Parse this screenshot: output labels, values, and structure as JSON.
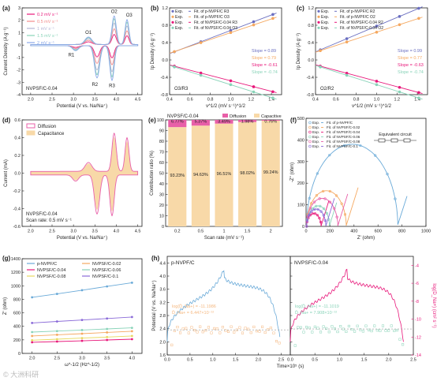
{
  "chart_data": [
    {
      "panel": "(a)",
      "type": "line",
      "ylabel": "Current Density (A g⁻¹)",
      "xlabel": "Potential (V vs. Na/Na⁺)",
      "xlim": [
        1.8,
        4.6
      ],
      "ylim": [
        -4,
        3
      ],
      "xticks": [
        2.0,
        2.5,
        3.0,
        3.5,
        4.0,
        4.5
      ],
      "yticks": [
        -4,
        -3,
        -2,
        -1,
        0,
        1,
        2,
        3
      ],
      "annotation": "NVPSF/C-0.04",
      "peak_labels": [
        "O1",
        "O2",
        "O3",
        "R1",
        "R2",
        "R3"
      ],
      "series": [
        {
          "name": "0.2 mV s⁻¹",
          "color": "#e8177a",
          "scale": 0.35
        },
        {
          "name": "0.5 mV s⁻¹",
          "color": "#f28b8b",
          "scale": 0.55
        },
        {
          "name": "1 mV s⁻¹",
          "color": "#b5b5d5",
          "scale": 0.75
        },
        {
          "name": "1.5 mV s⁻¹",
          "color": "#88d3b8",
          "scale": 0.9
        },
        {
          "name": "2 mV s⁻¹",
          "color": "#8aa8e8",
          "scale": 1.0
        }
      ],
      "legend": "top-left"
    },
    {
      "panel": "(b)",
      "type": "scatter",
      "ylabel": "Ip Density (A g⁻¹)",
      "xlabel": "v^1/2 (mV s⁻¹)^1/2",
      "xlim": [
        0.4,
        1.5
      ],
      "ylim": [
        -0.8,
        1.2
      ],
      "xticks": [
        0.4,
        0.6,
        0.8,
        1.0,
        1.2,
        1.4
      ],
      "yticks": [
        -0.8,
        -0.4,
        0.0,
        0.4,
        0.8,
        1.2
      ],
      "x": [
        0.447,
        0.707,
        1.0,
        1.225,
        1.414
      ],
      "annotation": "O3/R3",
      "legend_entries": [
        "Exp.",
        "Fit. of p-NVPF/C R3",
        "Exp.",
        "Fit. of p-NVPF/C O3",
        "Exp.",
        "Fit. of NVPSF/C-0.04 R3",
        "Exp.",
        "Fit. of NVPSF/C-0.04 O3"
      ],
      "slopes": [
        {
          "text": "Slope = 0.89",
          "color": "#6a6ec0"
        },
        {
          "text": "Slope = 0.79",
          "color": "#f5a860"
        },
        {
          "text": "Slope = -0.61",
          "color": "#e8177a"
        },
        {
          "text": "Slope = -0.74",
          "color": "#88d3b8"
        }
      ],
      "series": [
        {
          "slope": 0.89,
          "intercept": -0.21,
          "color": "#6a6ec0"
        },
        {
          "slope": 0.79,
          "intercept": -0.16,
          "color": "#f5a860"
        },
        {
          "slope": -0.61,
          "intercept": 0.13,
          "color": "#e8177a"
        },
        {
          "slope": -0.74,
          "intercept": 0.17,
          "color": "#88d3b8"
        }
      ]
    },
    {
      "panel": "(c)",
      "type": "scatter",
      "ylabel": "Ip Density (A g⁻¹)",
      "xlabel": "v^1/2 (mV s⁻¹)^1/2",
      "xlim": [
        0.4,
        1.5
      ],
      "ylim": [
        -0.8,
        1.2
      ],
      "xticks": [
        0.4,
        0.6,
        0.8,
        1.0,
        1.2,
        1.4
      ],
      "yticks": [
        -0.8,
        -0.4,
        0.0,
        0.4,
        0.8,
        1.2
      ],
      "x": [
        0.447,
        0.707,
        1.0,
        1.225,
        1.414
      ],
      "annotation": "O2/R2",
      "legend_entries": [
        "Exp.",
        "Fit. of p-NVPF/C R2",
        "Exp.",
        "Fit. of p-NVPF/C O2",
        "Exp.",
        "Fit. of NVPSF/C-0.04 R2",
        "Exp.",
        "Fit. of NVPSF/C-0.04 O2"
      ],
      "slopes": [
        {
          "text": "Slope = 0.99",
          "color": "#6a6ec0"
        },
        {
          "text": "Slope = 0.77",
          "color": "#f5a860"
        },
        {
          "text": "Slope = -0.63",
          "color": "#e8177a"
        },
        {
          "text": "Slope = -0.74",
          "color": "#88d3b8"
        }
      ],
      "series": [
        {
          "slope": 0.99,
          "intercept": -0.21,
          "color": "#6a6ec0"
        },
        {
          "slope": 0.77,
          "intercept": -0.13,
          "color": "#f5a860"
        },
        {
          "slope": -0.63,
          "intercept": 0.14,
          "color": "#e8177a"
        },
        {
          "slope": -0.74,
          "intercept": 0.17,
          "color": "#88d3b8"
        }
      ]
    },
    {
      "panel": "(d)",
      "type": "area",
      "ylabel": "Current (mA)",
      "xlabel": "Potential (V vs. Na/Na⁺)",
      "xlim": [
        1.8,
        4.6
      ],
      "ylim": [
        -0.6,
        0.6
      ],
      "xticks": [
        2.0,
        2.5,
        3.0,
        3.5,
        4.0,
        4.5
      ],
      "yticks": [
        -0.6,
        -0.4,
        -0.2,
        0.0,
        0.2,
        0.4,
        0.6
      ],
      "legend_entries": [
        {
          "name": "Diffusion",
          "color": "#e85fa8"
        },
        {
          "name": "Capacitance",
          "color": "#f8d9a8"
        }
      ],
      "annotation": [
        "NVPSF/C-0.04",
        "Scan rate: 0.5 mV s⁻¹"
      ]
    },
    {
      "panel": "(e)",
      "type": "bar",
      "ylabel": "Contribution ratio (%)",
      "xlabel": "Scan rate (mV s⁻¹)",
      "ylim": [
        0,
        100
      ],
      "yticks": [
        0,
        10,
        20,
        30,
        40,
        50,
        60,
        70,
        80,
        90,
        100
      ],
      "categories": [
        "0.2",
        "0.5",
        "1",
        "1.5",
        "2"
      ],
      "series": [
        {
          "name": "Capacitive",
          "color": "#f8d9a8",
          "values": [
            93.23,
            94.63,
            96.51,
            98.02,
            99.24
          ],
          "labels": [
            "93.23%",
            "94.63%",
            "96.51%",
            "98.02%",
            "99.24%"
          ]
        },
        {
          "name": "Diffusion",
          "color": "#e85fa8",
          "values": [
            6.77,
            5.37,
            3.49,
            1.98,
            0.76
          ],
          "labels": [
            "6.77%",
            "5.37%",
            "3.49%",
            "1.98%",
            "0.76%"
          ]
        }
      ],
      "annotation": "NVPSF/C-0.04",
      "legend": "top"
    },
    {
      "panel": "(f)",
      "type": "scatter",
      "ylabel": "-Z'' (ohm)",
      "xlabel": "Z' (ohm)",
      "xlim": [
        0,
        1000
      ],
      "ylim": [
        0,
        500
      ],
      "xticks": [
        0,
        200,
        400,
        600,
        800,
        1000
      ],
      "yticks": [
        0,
        100,
        200,
        300,
        400,
        500
      ],
      "legend_entries": [
        "Exp.",
        "Fit. of p-NVPF/C",
        "Exp.",
        "Fit. of NVPSF/C-0.02",
        "Exp.",
        "Fit. of NVPSF/C-0.04",
        "Exp.",
        "Fit. of NVPSF/C-0.06",
        "Exp.",
        "Fit. of NVPSF/C-0.08",
        "Exp.",
        "Fit. of NVPSF/C-0.1"
      ],
      "annotation": "Equivalent circuit",
      "series": [
        {
          "color": "#6aaad8",
          "rs": 5,
          "rct": 760,
          "tail": 140
        },
        {
          "color": "#f5a860",
          "rs": 5,
          "rct": 330,
          "tail": 180
        },
        {
          "color": "#e8177a",
          "rs": 5,
          "rct": 120,
          "tail": 120
        },
        {
          "color": "#88d3b8",
          "rs": 5,
          "rct": 190,
          "tail": 110
        },
        {
          "color": "#e85fa8",
          "rs": 5,
          "rct": 260,
          "tail": 150
        },
        {
          "color": "#8a6ad8",
          "rs": 5,
          "rct": 160,
          "tail": 130
        }
      ]
    },
    {
      "panel": "(g)",
      "type": "line",
      "ylabel": "Z' (ohm)",
      "xlabel": "ω^-1/2 (Hz^-1/2)",
      "xlim": [
        1.8,
        4.2
      ],
      "ylim": [
        0,
        1400
      ],
      "xticks": [
        2.0,
        2.5,
        3.0,
        3.5,
        4.0
      ],
      "yticks": [
        0,
        200,
        400,
        600,
        800,
        1000,
        1200,
        1400
      ],
      "x": [
        2.0,
        2.5,
        3.0,
        3.5,
        4.0
      ],
      "series": [
        {
          "name": "p-NVPF/C",
          "color": "#6aaad8",
          "values": [
            830,
            880,
            935,
            990,
            1045
          ]
        },
        {
          "name": "NVPSF/C-0.02",
          "color": "#f5a860",
          "values": [
            258,
            275,
            292,
            310,
            328
          ]
        },
        {
          "name": "NVPSF/C-0.04",
          "color": "#e8177a",
          "values": [
            165,
            175,
            186,
            198,
            210
          ]
        },
        {
          "name": "NVPSF/C-0.06",
          "color": "#88d3b8",
          "values": [
            315,
            330,
            345,
            362,
            378
          ]
        },
        {
          "name": "NVPSF/C-0.08",
          "color": "#e8d860",
          "values": [
            195,
            210,
            226,
            242,
            258
          ]
        },
        {
          "name": "NVPSF/C-0.1",
          "color": "#8a6ad8",
          "values": [
            450,
            472,
            494,
            516,
            538
          ]
        }
      ],
      "legend": "top"
    },
    {
      "panel": "(h)",
      "type": "line",
      "ylabel": "Potential (V vs. Na/Na⁺)",
      "ylabel_right": "log(D_Na+) (cm² s⁻¹)",
      "xlabel": "Time×10⁵ (s)",
      "ylim": [
        1.6,
        4.6
      ],
      "yticks": [
        1.6,
        2.0,
        2.4,
        2.8,
        3.2,
        3.6,
        4.0,
        4.4
      ],
      "ylim_right": [
        -14,
        -3
      ],
      "yticks_right": [
        -14,
        -12,
        -10,
        -8,
        -6,
        -4
      ],
      "left": {
        "name": "p-NVPF/C",
        "xlim": [
          0,
          2.7
        ],
        "xticks": [
          0.0,
          0.5,
          1.0,
          1.5,
          2.0,
          2.5
        ],
        "line_color": "#6aaad8",
        "point_color": "#f5b880",
        "log_text": "log(D̄_Na+) = -11.1986",
        "d_text": "D̄_Na+ = 6.447×10⁻¹²",
        "mean_log": -11.2
      },
      "right": {
        "name": "NVPSF/C-0.04",
        "xlim": [
          0,
          2.5
        ],
        "xticks": [
          0.0,
          0.5,
          1.0,
          1.5,
          2.0,
          2.5
        ],
        "line_color": "#e8177a",
        "point_color": "#88d3b8",
        "log_text": "log(D̄_Na+) = -11.1019",
        "d_text": "D̄_Na+ = 7.908×10⁻¹²",
        "mean_log": -11.1
      }
    }
  ],
  "watermark": "© 大洲科研"
}
